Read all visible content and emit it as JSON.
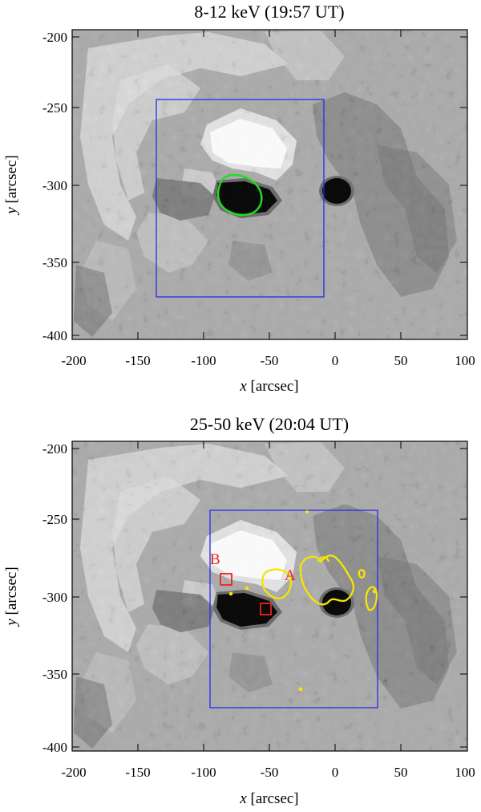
{
  "panels": [
    {
      "title": "8-12 keV (19:57 UT)",
      "xlabel": {
        "var": "x",
        "unit": "[arcsec]"
      },
      "ylabel": {
        "var": "y",
        "unit": "[arcsec]"
      },
      "xticks": [
        "-200",
        "-150",
        "-100",
        "-50",
        "0",
        "50",
        "100"
      ],
      "yticks": [
        "-200",
        "-250",
        "-300",
        "-350",
        "-400"
      ],
      "contour_color": "#22dd22",
      "box_color": "#2a2aee",
      "markers": []
    },
    {
      "title": "25-50 keV (20:04 UT)",
      "xlabel": {
        "var": "x",
        "unit": "[arcsec]"
      },
      "ylabel": {
        "var": "y",
        "unit": "[arcsec]"
      },
      "xticks": [
        "-200",
        "-150",
        "-100",
        "-50",
        "0",
        "50",
        "100"
      ],
      "yticks": [
        "-200",
        "-250",
        "-300",
        "-350",
        "-400"
      ],
      "contour_color": "#f5e600",
      "box_color": "#2a2aee",
      "markers": [
        {
          "label": "A",
          "color": "#ee2222"
        },
        {
          "label": "B",
          "color": "#ee2222"
        }
      ]
    }
  ]
}
